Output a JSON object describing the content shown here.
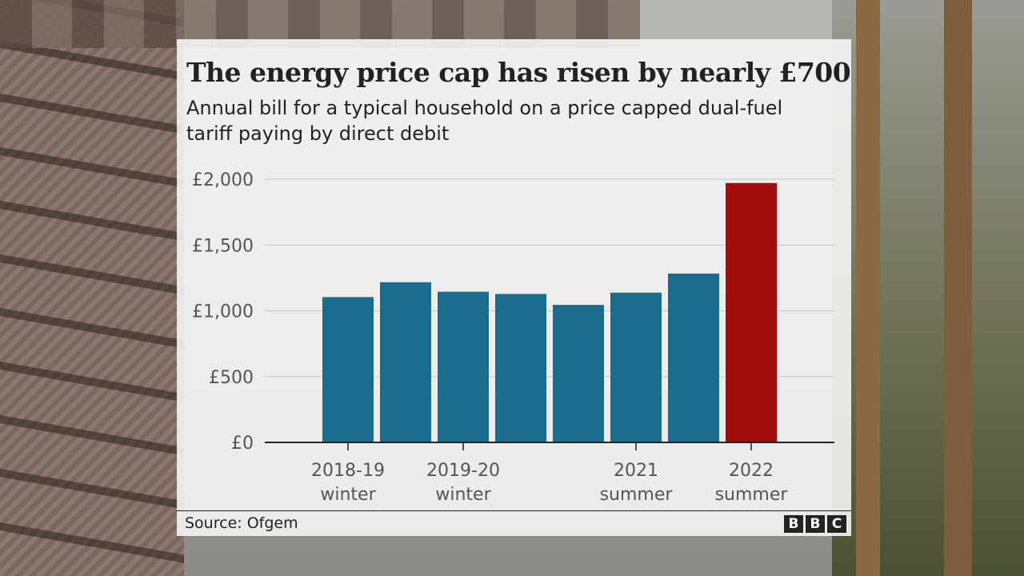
{
  "chart_data": {
    "type": "bar",
    "title": "The energy price cap has risen by nearly £700",
    "subtitle": "Annual bill for a typical household on a price capped dual-fuel tariff paying by direct debit",
    "ylim": [
      0,
      2000
    ],
    "yticks": [
      0,
      500,
      1000,
      1500,
      2000
    ],
    "ytick_labels": [
      "£0",
      "£500",
      "£1,000",
      "£1,500",
      "£2,000"
    ],
    "xtick_labels": [
      {
        "index": 0,
        "line1": "2018-19",
        "line2": "winter"
      },
      {
        "index": 2,
        "line1": "2019-20",
        "line2": "winter"
      },
      {
        "index": 5,
        "line1": "2021",
        "line2": "summer"
      },
      {
        "index": 7,
        "line1": "2022",
        "line2": "summer"
      }
    ],
    "values": [
      1104,
      1217,
      1145,
      1128,
      1045,
      1138,
      1283,
      1971
    ],
    "highlight_index": 7,
    "colors": {
      "bar": "#1b6c8f",
      "highlight": "#a00d0d",
      "grid": "#c8c8c8",
      "axis": "#222222"
    }
  },
  "footer": {
    "source": "Source: Ofgem",
    "brand_letters": [
      "B",
      "B",
      "C"
    ]
  }
}
